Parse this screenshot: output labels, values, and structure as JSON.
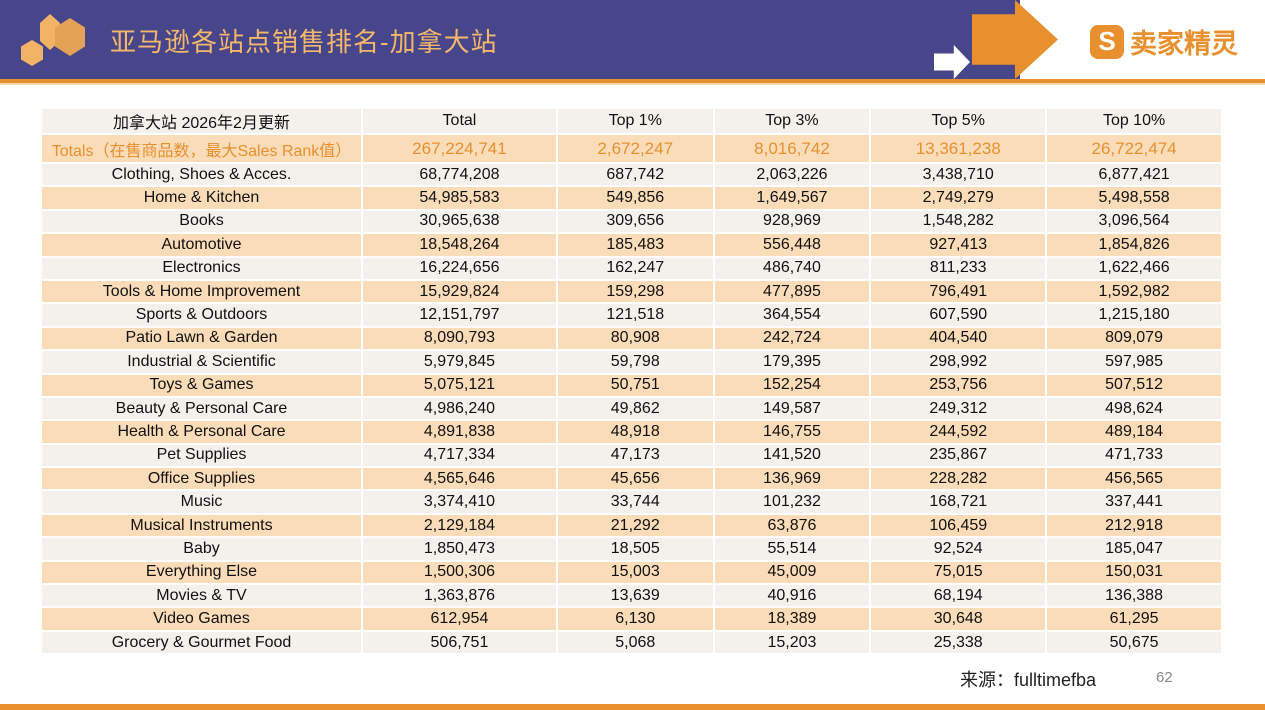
{
  "header": {
    "title": "亚马逊各站点销售排名-加拿大站",
    "logo_text": "卖家精灵",
    "logo_icon": "s-logo-icon",
    "banner_color": "#48468a",
    "accent_color": "#e8902e"
  },
  "table": {
    "columns": [
      "加拿大站 2026年2月更新",
      "Total",
      "Top 1%",
      "Top 3%",
      "Top 5%",
      "Top 10%"
    ],
    "totals": [
      "Totals（在售商品数，最大Sales Rank值）",
      "267,224,741",
      "2,672,247",
      "8,016,742",
      "13,361,238",
      "26,722,474"
    ],
    "rows": [
      [
        "Clothing, Shoes & Acces.",
        "68,774,208",
        "687,742",
        "2,063,226",
        "3,438,710",
        "6,877,421"
      ],
      [
        "Home & Kitchen",
        "54,985,583",
        "549,856",
        "1,649,567",
        "2,749,279",
        "5,498,558"
      ],
      [
        "Books",
        "30,965,638",
        "309,656",
        "928,969",
        "1,548,282",
        "3,096,564"
      ],
      [
        "Automotive",
        "18,548,264",
        "185,483",
        "556,448",
        "927,413",
        "1,854,826"
      ],
      [
        "Electronics",
        "16,224,656",
        "162,247",
        "486,740",
        "811,233",
        "1,622,466"
      ],
      [
        "Tools & Home Improvement",
        "15,929,824",
        "159,298",
        "477,895",
        "796,491",
        "1,592,982"
      ],
      [
        "Sports & Outdoors",
        "12,151,797",
        "121,518",
        "364,554",
        "607,590",
        "1,215,180"
      ],
      [
        "Patio Lawn & Garden",
        "8,090,793",
        "80,908",
        "242,724",
        "404,540",
        "809,079"
      ],
      [
        "Industrial & Scientific",
        "5,979,845",
        "59,798",
        "179,395",
        "298,992",
        "597,985"
      ],
      [
        "Toys & Games",
        "5,075,121",
        "50,751",
        "152,254",
        "253,756",
        "507,512"
      ],
      [
        "Beauty & Personal Care",
        "4,986,240",
        "49,862",
        "149,587",
        "249,312",
        "498,624"
      ],
      [
        "Health & Personal Care",
        "4,891,838",
        "48,918",
        "146,755",
        "244,592",
        "489,184"
      ],
      [
        "Pet Supplies",
        "4,717,334",
        "47,173",
        "141,520",
        "235,867",
        "471,733"
      ],
      [
        "Office Supplies",
        "4,565,646",
        "45,656",
        "136,969",
        "228,282",
        "456,565"
      ],
      [
        "Music",
        "3,374,410",
        "33,744",
        "101,232",
        "168,721",
        "337,441"
      ],
      [
        "Musical Instruments",
        "2,129,184",
        "21,292",
        "63,876",
        "106,459",
        "212,918"
      ],
      [
        "Baby",
        "1,850,473",
        "18,505",
        "55,514",
        "92,524",
        "185,047"
      ],
      [
        "Everything Else",
        "1,500,306",
        "15,003",
        "45,009",
        "75,015",
        "150,031"
      ],
      [
        "Movies & TV",
        "1,363,876",
        "13,639",
        "40,916",
        "68,194",
        "136,388"
      ],
      [
        "Video Games",
        "612,954",
        "6,130",
        "18,389",
        "30,648",
        "61,295"
      ],
      [
        "Grocery & Gourmet Food",
        "506,751",
        "5,068",
        "15,203",
        "25,338",
        "50,675"
      ]
    ]
  },
  "footer": {
    "source": "来源：fulltimefba",
    "page": "62"
  }
}
